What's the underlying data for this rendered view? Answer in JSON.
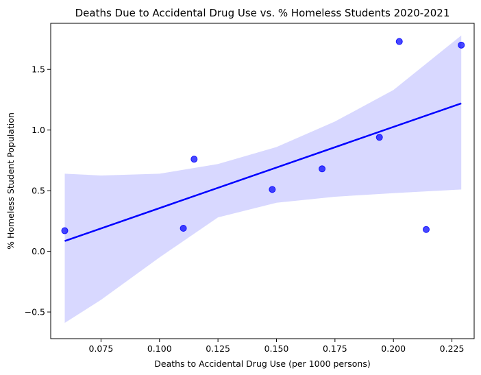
{
  "chart_data": {
    "type": "scatter",
    "title": "Deaths Due to Accidental Drug Use vs. % Homeless Students 2020-2021",
    "xlabel": "Deaths to Accidental Drug Use (per 1000 persons)",
    "ylabel": "% Homeless Student Population",
    "xlim": [
      0.0535,
      0.2345
    ],
    "ylim": [
      -0.72,
      1.88
    ],
    "x_ticks": [
      0.075,
      0.1,
      0.125,
      0.15,
      0.175,
      0.2,
      0.225
    ],
    "x_tick_labels": [
      "0.075",
      "0.100",
      "0.125",
      "0.150",
      "0.175",
      "0.200",
      "0.225"
    ],
    "y_ticks": [
      -0.5,
      0.0,
      0.5,
      1.0,
      1.5
    ],
    "y_tick_labels": [
      "−0.5",
      "0.0",
      "0.5",
      "1.0",
      "1.5"
    ],
    "points": [
      {
        "x": 0.0595,
        "y": 0.17
      },
      {
        "x": 0.1102,
        "y": 0.19
      },
      {
        "x": 0.1148,
        "y": 0.76
      },
      {
        "x": 0.1482,
        "y": 0.51
      },
      {
        "x": 0.1695,
        "y": 0.68
      },
      {
        "x": 0.194,
        "y": 0.94
      },
      {
        "x": 0.2025,
        "y": 1.73
      },
      {
        "x": 0.214,
        "y": 0.18
      },
      {
        "x": 0.229,
        "y": 1.7
      }
    ],
    "regression": {
      "x_start": 0.0595,
      "y_start": 0.085,
      "x_end": 0.229,
      "y_end": 1.22
    },
    "confidence_band": {
      "x": [
        0.0595,
        0.075,
        0.1,
        0.125,
        0.15,
        0.175,
        0.2,
        0.229
      ],
      "upper": [
        0.64,
        0.625,
        0.64,
        0.72,
        0.86,
        1.07,
        1.33,
        1.78
      ],
      "lower": [
        -0.59,
        -0.4,
        -0.05,
        0.28,
        0.4,
        0.45,
        0.48,
        0.51
      ]
    },
    "colors": {
      "points": "#0000ff",
      "line": "#0000ff",
      "band": "#d8d8ff"
    },
    "grid": false,
    "legend": "none"
  }
}
